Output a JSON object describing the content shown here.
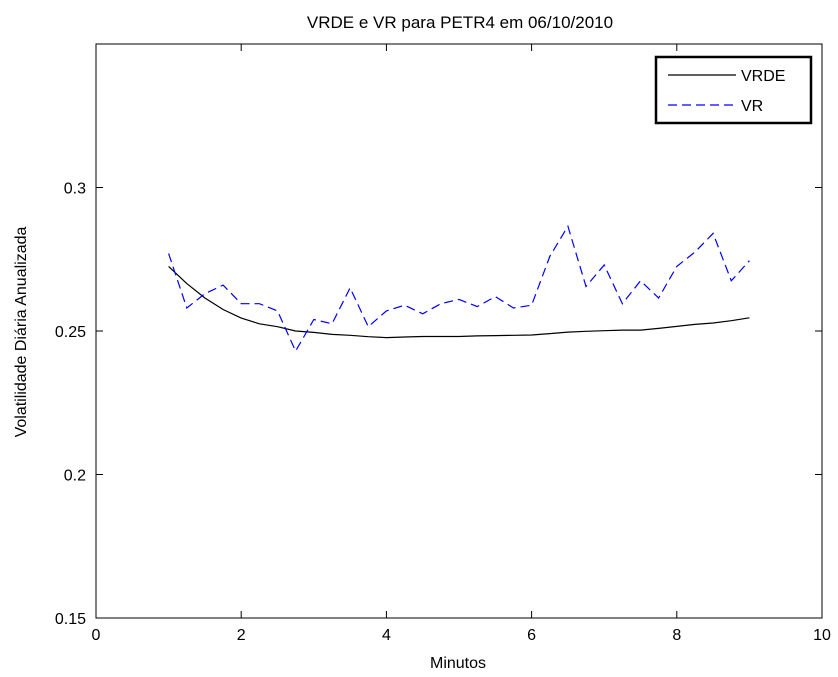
{
  "chart_data": {
    "type": "line",
    "title": "VRDE e VR para PETR4 em 06/10/2010",
    "xlabel": "Minutos",
    "ylabel": "Volatilidade Diária Anualizada",
    "xlim": [
      0,
      10
    ],
    "ylim": [
      0.15,
      0.35
    ],
    "xticks": [
      0,
      2,
      4,
      6,
      8,
      10
    ],
    "xtick_labels": [
      "0",
      "2",
      "4",
      "6",
      "8",
      "10"
    ],
    "yticks": [
      0.15,
      0.2,
      0.25,
      0.3
    ],
    "ytick_labels": [
      "0.15",
      "0.2",
      "0.25",
      "0.3"
    ],
    "grid": false,
    "legend_position": "top-right",
    "series": [
      {
        "name": "VRDE",
        "color": "#000000",
        "style": "solid",
        "x": [
          1.0,
          1.25,
          1.5,
          1.75,
          2.0,
          2.25,
          2.5,
          2.75,
          3.0,
          3.25,
          3.5,
          3.75,
          4.0,
          4.25,
          4.5,
          4.75,
          5.0,
          5.25,
          5.5,
          5.75,
          6.0,
          6.25,
          6.5,
          6.75,
          7.0,
          7.25,
          7.5,
          7.75,
          8.0,
          8.25,
          8.5,
          8.75,
          9.0
        ],
        "y": [
          0.2725,
          0.2665,
          0.2615,
          0.2575,
          0.2545,
          0.2525,
          0.2515,
          0.25,
          0.2495,
          0.2488,
          0.2485,
          0.248,
          0.2477,
          0.2479,
          0.2481,
          0.2481,
          0.2481,
          0.2483,
          0.2484,
          0.2485,
          0.2486,
          0.2491,
          0.2496,
          0.2499,
          0.2501,
          0.2503,
          0.2503,
          0.2509,
          0.2516,
          0.2523,
          0.2528,
          0.2536,
          0.2546
        ]
      },
      {
        "name": "VR",
        "color": "#0000ff",
        "style": "dashed",
        "x": [
          1.0,
          1.25,
          1.5,
          1.75,
          2.0,
          2.25,
          2.5,
          2.75,
          3.0,
          3.25,
          3.5,
          3.75,
          4.0,
          4.25,
          4.5,
          4.75,
          5.0,
          5.25,
          5.5,
          5.75,
          6.0,
          6.25,
          6.5,
          6.75,
          7.0,
          7.25,
          7.5,
          7.75,
          8.0,
          8.25,
          8.5,
          8.75,
          9.0
        ],
        "y": [
          0.277,
          0.258,
          0.263,
          0.266,
          0.2595,
          0.2595,
          0.257,
          0.243,
          0.254,
          0.2525,
          0.265,
          0.2515,
          0.257,
          0.259,
          0.256,
          0.2595,
          0.261,
          0.2585,
          0.262,
          0.258,
          0.259,
          0.276,
          0.2865,
          0.2655,
          0.273,
          0.2595,
          0.2675,
          0.2615,
          0.2725,
          0.2775,
          0.284,
          0.2675,
          0.2745
        ]
      }
    ]
  }
}
